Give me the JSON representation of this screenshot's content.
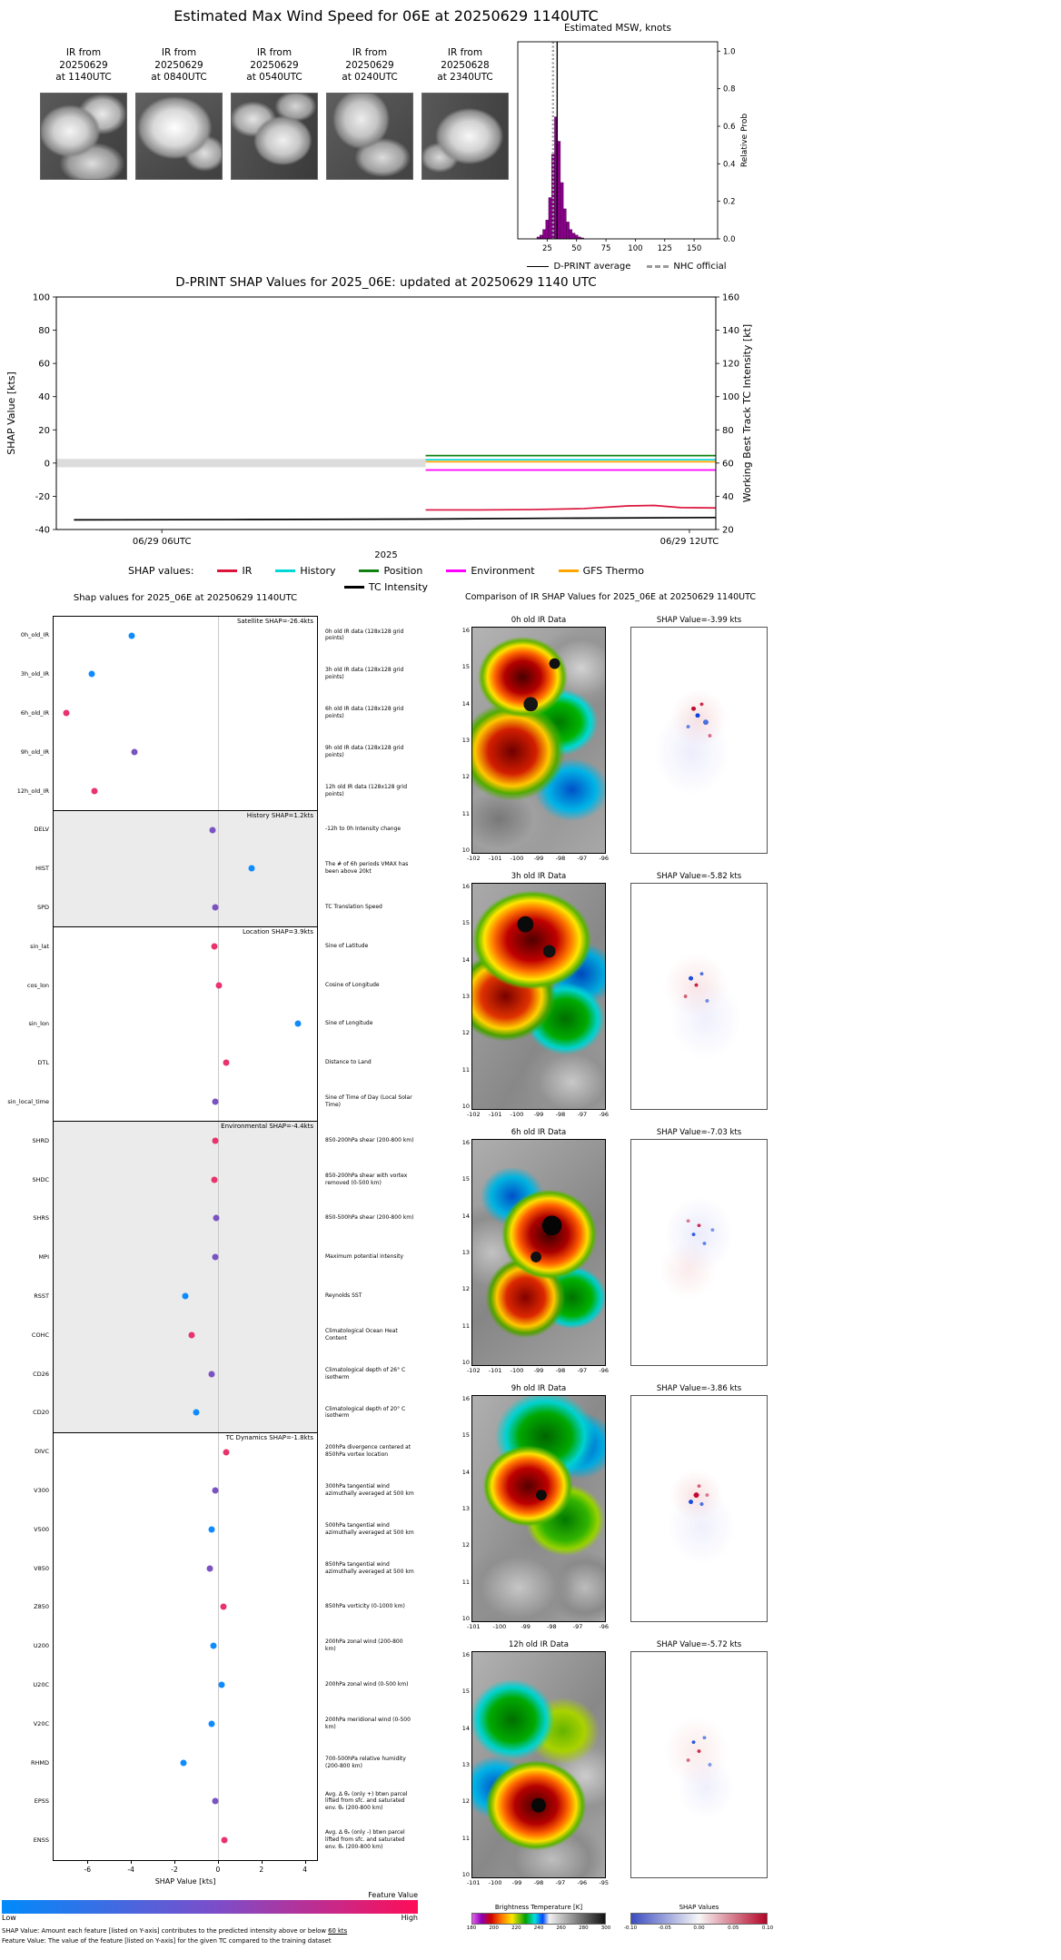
{
  "top": {
    "title": "Estimated Max Wind Speed for 06E at 20250629 1140UTC",
    "thumbnails": [
      {
        "lines": [
          "IR from",
          "20250629",
          "at 1140UTC"
        ]
      },
      {
        "lines": [
          "IR from",
          "20250629",
          "at 0840UTC"
        ]
      },
      {
        "lines": [
          "IR from",
          "20250629",
          "at 0540UTC"
        ]
      },
      {
        "lines": [
          "IR from",
          "20250629",
          "at 0240UTC"
        ]
      },
      {
        "lines": [
          "IR from",
          "20250628",
          "at 2340UTC"
        ]
      }
    ]
  },
  "chart_data": [
    {
      "id": "msw_histogram",
      "type": "bar",
      "title": "Estimated MSW, knots",
      "ylabel": "Relative Prob",
      "xlim": [
        0,
        170
      ],
      "ylim": [
        0,
        1.05
      ],
      "x_ticks": [
        25,
        50,
        75,
        100,
        125,
        150
      ],
      "y_ticks": [
        0,
        0.2,
        0.4,
        0.6,
        0.8,
        1
      ],
      "bin_width": 2.5,
      "bins": [
        17.5,
        20,
        22.5,
        25,
        27.5,
        30,
        32.5,
        35,
        37.5,
        40,
        42.5,
        45,
        47.5,
        50,
        52.5,
        55
      ],
      "values": [
        0.01,
        0.02,
        0.05,
        0.1,
        0.22,
        0.45,
        0.65,
        0.52,
        0.3,
        0.16,
        0.09,
        0.05,
        0.03,
        0.02,
        0.01,
        0.005
      ],
      "bar_color": "#8B008B",
      "dprint_average": 33.5,
      "nhc_official": 30,
      "legend": [
        {
          "label": "D-PRINT average",
          "style": "solid",
          "color": "#000000"
        },
        {
          "label": "NHC official",
          "style": "dashed",
          "color": "#999999"
        }
      ]
    },
    {
      "id": "shap_timeseries",
      "type": "line",
      "title": "D-PRINT SHAP Values for 2025_06E: updated at 20250629 1140 UTC",
      "ylabel_left": "SHAP Value [kts]",
      "ylabel_right": "Working Best Track TC Intensity [kt]",
      "xlabel": "2025",
      "x_range": [
        4.8,
        12.3
      ],
      "x_ticks": [
        {
          "hour": 6,
          "label": "06/29 06UTC"
        },
        {
          "hour": 12,
          "label": "06/29 12UTC"
        }
      ],
      "ylim_left": [
        -40,
        100
      ],
      "yticks_left": [
        -40,
        -20,
        0,
        20,
        40,
        60,
        80,
        100
      ],
      "ylim_right": [
        20,
        160
      ],
      "yticks_right": [
        20,
        40,
        60,
        80,
        100,
        120,
        140,
        160
      ],
      "baseline_band": {
        "y": 0,
        "x_from": 4.8,
        "x_to": 9.0,
        "color": "#DCDCDC"
      },
      "series": [
        {
          "name": "IR",
          "color": "#DC143C",
          "axis": "left",
          "points": [
            [
              9.0,
              -28.2
            ],
            [
              9.6,
              -28.2
            ],
            [
              10.2,
              -28.0
            ],
            [
              10.8,
              -27.4
            ],
            [
              11.3,
              -25.8
            ],
            [
              11.6,
              -25.5
            ],
            [
              11.9,
              -26.8
            ],
            [
              12.3,
              -27.0
            ]
          ]
        },
        {
          "name": "History",
          "color": "#00D8D8",
          "axis": "left",
          "points": [
            [
              9.0,
              2.0
            ],
            [
              12.3,
              2.0
            ]
          ]
        },
        {
          "name": "Position",
          "color": "#108010",
          "axis": "left",
          "points": [
            [
              9.0,
              4.5
            ],
            [
              12.3,
              4.5
            ]
          ]
        },
        {
          "name": "Environment",
          "color": "#FF00FF",
          "axis": "left",
          "points": [
            [
              9.0,
              -4.2
            ],
            [
              12.3,
              -4.2
            ]
          ]
        },
        {
          "name": "GFS Thermo",
          "color": "#FFA500",
          "axis": "left",
          "points": [
            [
              9.0,
              0.8
            ],
            [
              12.3,
              0.8
            ]
          ]
        },
        {
          "name": "TC Intensity",
          "color": "#000000",
          "axis": "right",
          "points": [
            [
              5.0,
              25.8
            ],
            [
              7.0,
              26.0
            ],
            [
              9.0,
              26.3
            ],
            [
              10.5,
              26.8
            ],
            [
              12.3,
              27.2
            ]
          ]
        }
      ],
      "legend_prefix": "SHAP values:",
      "legend_row1": [
        "IR",
        "History",
        "Position",
        "Environment",
        "GFS Thermo"
      ],
      "legend_row2": [
        "TC Intensity"
      ]
    },
    {
      "id": "feature_shap",
      "type": "scatter",
      "title": "Shap values for 2025_06E at 20250629 1140UTC",
      "xlabel": "SHAP Value [kts]",
      "xlim": [
        -7.6,
        4.6
      ],
      "x_ticks": [
        -6,
        -4,
        -2,
        0,
        2,
        4
      ],
      "groups": [
        {
          "label": "Satellite SHAP=-26.4kts",
          "shaded": false
        },
        {
          "label": "History SHAP=1.2kts",
          "shaded": true
        },
        {
          "label": "Location SHAP=3.9kts",
          "shaded": false
        },
        {
          "label": "Environmental SHAP=-4.4kts",
          "shaded": true
        },
        {
          "label": "TC Dynamics SHAP=-1.8kts",
          "shaded": false
        }
      ],
      "features": [
        {
          "name": "0h_old_IR",
          "value": -3.99,
          "color": "#0E8BFF",
          "group": 0,
          "desc": "0h old IR data (128x128 grid points)"
        },
        {
          "name": "3h_old_IR",
          "value": -5.82,
          "color": "#0E8BFF",
          "group": 0,
          "desc": "3h old IR data (128x128 grid points)"
        },
        {
          "name": "6h_old_IR",
          "value": -7.03,
          "color": "#E8336D",
          "group": 0,
          "desc": "6h old IR data (128x128 grid points)"
        },
        {
          "name": "9h_old_IR",
          "value": -3.86,
          "color": "#7A52C2",
          "group": 0,
          "desc": "9h old IR data (128x128 grid points)"
        },
        {
          "name": "12h_old_IR",
          "value": -5.72,
          "color": "#E8336D",
          "group": 0,
          "desc": "12h old IR data (128x128 grid points)"
        },
        {
          "name": "DELV",
          "value": -0.25,
          "color": "#7A52C2",
          "group": 1,
          "desc": "-12h to 0h Intensity change"
        },
        {
          "name": "HIST",
          "value": 1.55,
          "color": "#0E8BFF",
          "group": 1,
          "desc": "The # of 6h periods VMAX has been above 20kt"
        },
        {
          "name": "SPD",
          "value": -0.1,
          "color": "#7A52C2",
          "group": 1,
          "desc": "TC Translation Speed"
        },
        {
          "name": "sin_lat",
          "value": -0.15,
          "color": "#E8336D",
          "group": 2,
          "desc": "Sine of Latitude"
        },
        {
          "name": "cos_lon",
          "value": 0.05,
          "color": "#E8336D",
          "group": 2,
          "desc": "Cosine of Longitude"
        },
        {
          "name": "sin_lon",
          "value": 3.7,
          "color": "#0E8BFF",
          "group": 2,
          "desc": "Sine of Longitude"
        },
        {
          "name": "DTL",
          "value": 0.4,
          "color": "#E8336D",
          "group": 2,
          "desc": "Distance to Land"
        },
        {
          "name": "sin_local_time",
          "value": -0.1,
          "color": "#7A52C2",
          "group": 2,
          "desc": "Sine of Time of Day (Local Solar Time)"
        },
        {
          "name": "SHRD",
          "value": -0.1,
          "color": "#E8336D",
          "group": 3,
          "desc": "850-200hPa shear (200-800 km)"
        },
        {
          "name": "SHDC",
          "value": -0.15,
          "color": "#E8336D",
          "group": 3,
          "desc": "850-200hPa shear with vortex removed (0-500 km)"
        },
        {
          "name": "SHRS",
          "value": -0.05,
          "color": "#7A52C2",
          "group": 3,
          "desc": "850-500hPa shear (200-800 km)"
        },
        {
          "name": "MPI",
          "value": -0.1,
          "color": "#7A52C2",
          "group": 3,
          "desc": "Maximum potential intensity"
        },
        {
          "name": "RSST",
          "value": -1.5,
          "color": "#0E8BFF",
          "group": 3,
          "desc": "Reynolds SST"
        },
        {
          "name": "COHC",
          "value": -1.2,
          "color": "#E8336D",
          "group": 3,
          "desc": "Climatological Ocean Heat Content"
        },
        {
          "name": "CD26",
          "value": -0.3,
          "color": "#7A52C2",
          "group": 3,
          "desc": "Climatological depth of 26° C isotherm"
        },
        {
          "name": "CD20",
          "value": -1.0,
          "color": "#0E8BFF",
          "group": 3,
          "desc": "Climatological depth of 20° C isotherm"
        },
        {
          "name": "DIVC",
          "value": 0.4,
          "color": "#E8336D",
          "group": 4,
          "desc": "200hPa divergence centered at 850hPa vortex location"
        },
        {
          "name": "V300",
          "value": -0.1,
          "color": "#7A52C2",
          "group": 4,
          "desc": "300hPa tangential wind azimuthally averaged at 500 km"
        },
        {
          "name": "V500",
          "value": -0.3,
          "color": "#0E8BFF",
          "group": 4,
          "desc": "500hPa tangential wind azimuthally averaged at 500 km"
        },
        {
          "name": "V850",
          "value": -0.35,
          "color": "#7A52C2",
          "group": 4,
          "desc": "850hPa tangential wind azimuthally averaged at 500 km"
        },
        {
          "name": "Z850",
          "value": 0.25,
          "color": "#E8336D",
          "group": 4,
          "desc": "850hPa vorticity (0-1000 km)"
        },
        {
          "name": "U200",
          "value": -0.2,
          "color": "#0E8BFF",
          "group": 4,
          "desc": "200hPa zonal wind (200-800 km)"
        },
        {
          "name": "U20C",
          "value": 0.2,
          "color": "#0E8BFF",
          "group": 4,
          "desc": "200hPa zonal wind (0-500 km)"
        },
        {
          "name": "V20C",
          "value": -0.3,
          "color": "#0E8BFF",
          "group": 4,
          "desc": "200hPa meridional wind (0-500 km)"
        },
        {
          "name": "RHMD",
          "value": -1.6,
          "color": "#0E8BFF",
          "group": 4,
          "desc": "700-500hPa relative humidity (200-800 km)"
        },
        {
          "name": "EPSS",
          "value": -0.1,
          "color": "#7A52C2",
          "group": 4,
          "desc": "Avg. Δ θₑ (only +) btwn parcel lifted from sfc. and saturated env. θₑ (200-800 km)"
        },
        {
          "name": "ENSS",
          "value": 0.3,
          "color": "#E8336D",
          "group": 4,
          "desc": "Avg. Δ θₑ (only -) btwn parcel lifted from sfc. and saturated env. θₑ (200-800 km)"
        }
      ],
      "colorbar": {
        "label": "Feature Value",
        "low": "Low",
        "high": "High",
        "colors": [
          "#008AFB",
          "#7D4DC9 52%",
          "#FF0D57"
        ]
      },
      "footnote1_pre": "SHAP Value: Amount each feature [listed on Y-axis] contributes to the predicted intensity above or below ",
      "footnote1_underline": "60 kts",
      "footnote2": "Feature Value: The value of the feature [listed on Y-axis] for the given TC compared to the training dataset"
    },
    {
      "id": "ir_shap_maps",
      "type": "heatmap",
      "title": "Comparison of IR SHAP Values for 2025_06E at 20250629 1140UTC",
      "rows": [
        {
          "ir_title": "0h old IR Data",
          "shap_title": "SHAP Value=-3.99 kts",
          "x_ticks": [
            -102,
            -101,
            -100,
            -99,
            -98,
            -97,
            -96
          ],
          "y_ticks": [
            16,
            15,
            14,
            13,
            12,
            11,
            10
          ]
        },
        {
          "ir_title": "3h old IR Data",
          "shap_title": "SHAP Value=-5.82 kts",
          "x_ticks": [
            -102,
            -101,
            -100,
            -99,
            -98,
            -97,
            -96
          ],
          "y_ticks": [
            16,
            15,
            14,
            13,
            12,
            11,
            10
          ]
        },
        {
          "ir_title": "6h old IR Data",
          "shap_title": "SHAP Value=-7.03 kts",
          "x_ticks": [
            -102,
            -101,
            -100,
            -99,
            -98,
            -97,
            -96
          ],
          "y_ticks": [
            16,
            15,
            14,
            13,
            12,
            11,
            10
          ]
        },
        {
          "ir_title": "9h old IR Data",
          "shap_title": "SHAP Value=-3.86 kts",
          "x_ticks": [
            -101,
            -100,
            -99,
            -98,
            -97,
            -96
          ],
          "y_ticks": [
            16,
            15,
            14,
            13,
            12,
            11,
            10
          ]
        },
        {
          "ir_title": "12h old IR Data",
          "shap_title": "SHAP Value=-5.72 kts",
          "x_ticks": [
            -101,
            -100,
            -99,
            -98,
            -97,
            -96,
            -95
          ],
          "y_ticks": [
            16,
            15,
            14,
            13,
            12,
            11,
            10
          ]
        }
      ],
      "bt_colorbar": {
        "label": "Brightness Temperature [K]",
        "ticks": [
          180,
          200,
          220,
          240,
          260,
          280,
          300
        ],
        "gradient": [
          "#e85cf0 0%",
          "#8b00b0 7%",
          "#d00000 14%",
          "#ff7800 22%",
          "#ffe600 30%",
          "#00a000 40%",
          "#00e0e0 47%",
          "#0048ff 53%",
          "#f0f0f0 58%",
          "#111111 100%"
        ]
      },
      "shap_colorbar": {
        "label": "SHAP Values",
        "ticks": [
          "-0.10",
          "-0.05",
          "0.00",
          "0.05",
          "0.10"
        ],
        "gradient": [
          "#3b4cc0 0%",
          "#f7f7f7 50%",
          "#b40426 100%"
        ]
      }
    }
  ]
}
